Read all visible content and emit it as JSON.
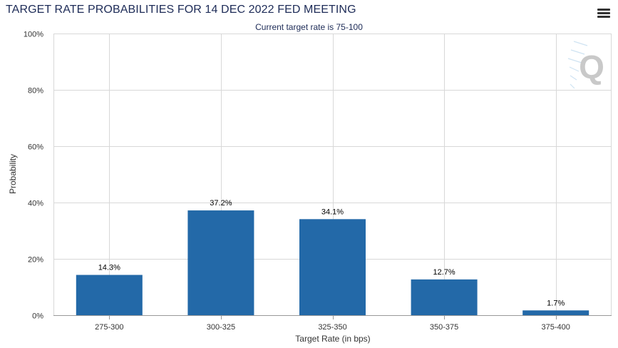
{
  "header": {
    "title": "TARGET RATE PROBABILITIES FOR 14 DEC 2022 FED MEETING",
    "subtitle": "Current target rate is 75-100",
    "menu_icon": "hamburger-menu-icon"
  },
  "watermark": {
    "letter": "Q",
    "icon": "q-logo-icon"
  },
  "colors": {
    "bar": "#2369a8",
    "grid": "#d8d8d8",
    "axis": "#999999",
    "title": "#1d2b57"
  },
  "chart_data": {
    "type": "bar",
    "categories": [
      "275-300",
      "300-325",
      "325-350",
      "350-375",
      "375-400"
    ],
    "values": [
      14.3,
      37.2,
      34.1,
      12.7,
      1.7
    ],
    "data_labels": [
      "14.3%",
      "37.2%",
      "34.1%",
      "12.7%",
      "1.7%"
    ],
    "xlabel": "Target Rate (in bps)",
    "ylabel": "Probability",
    "ylim": [
      0,
      100
    ],
    "yticks": [
      0,
      20,
      40,
      60,
      80,
      100
    ],
    "ytick_labels": [
      "0%",
      "20%",
      "40%",
      "60%",
      "80%",
      "100%"
    ],
    "grid": true,
    "legend": "none"
  }
}
